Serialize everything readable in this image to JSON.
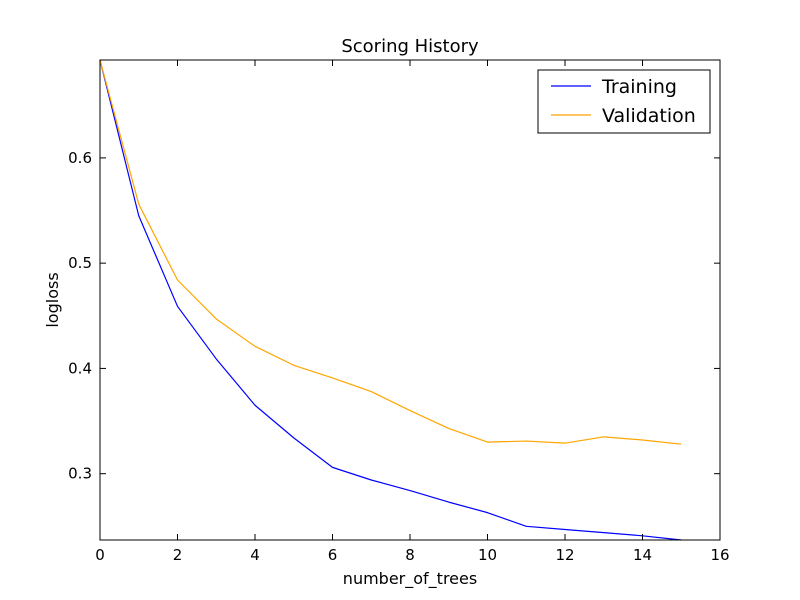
{
  "chart_data": {
    "type": "line",
    "title": "Scoring History",
    "xlabel": "number_of_trees",
    "ylabel": "logloss",
    "xlim": [
      0,
      16
    ],
    "ylim": [
      0.237,
      0.693
    ],
    "xticks": [
      0,
      2,
      4,
      6,
      8,
      10,
      12,
      14,
      16
    ],
    "xtick_labels": [
      "0",
      "2",
      "4",
      "6",
      "8",
      "10",
      "12",
      "14",
      "16"
    ],
    "yticks": [
      0.3,
      0.4,
      0.5,
      0.6
    ],
    "ytick_labels": [
      "0.3",
      "0.4",
      "0.5",
      "0.6"
    ],
    "grid": false,
    "legend_position": "top-right",
    "series": [
      {
        "name": "Training",
        "color": "#0000ff",
        "x": [
          0,
          1,
          2,
          3,
          4,
          5,
          6,
          7,
          8,
          9,
          10,
          11,
          12,
          13,
          14,
          15
        ],
        "values": [
          0.693,
          0.545,
          0.459,
          0.409,
          0.365,
          0.334,
          0.306,
          0.294,
          0.284,
          0.273,
          0.263,
          0.25,
          0.247,
          0.244,
          0.241,
          0.237
        ]
      },
      {
        "name": "Validation",
        "color": "#ffa500",
        "x": [
          0,
          1,
          2,
          3,
          4,
          5,
          6,
          7,
          8,
          9,
          10,
          11,
          12,
          13,
          14,
          15
        ],
        "values": [
          0.693,
          0.556,
          0.484,
          0.447,
          0.421,
          0.403,
          0.391,
          0.378,
          0.36,
          0.343,
          0.33,
          0.331,
          0.329,
          0.335,
          0.332,
          0.328
        ]
      }
    ]
  }
}
